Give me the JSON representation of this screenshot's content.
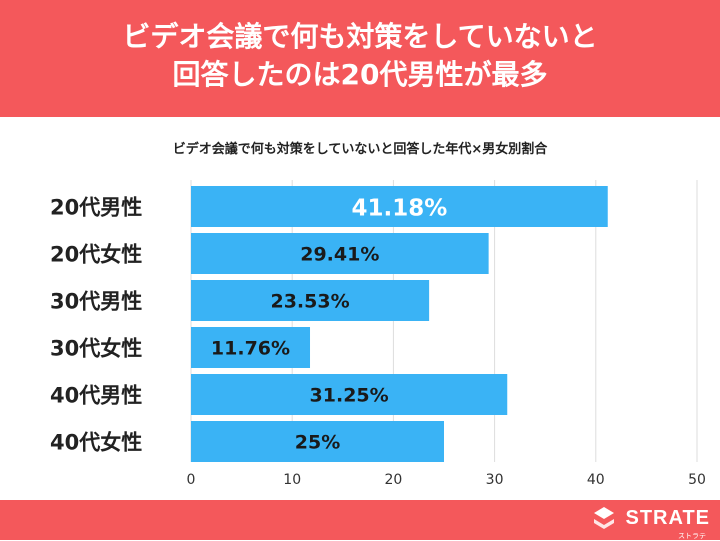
{
  "header": {
    "title_line1": "ビデオ会議で何も対策をしていないと",
    "title_line2": "回答したのは20代男性が最多"
  },
  "chart_data": {
    "type": "bar",
    "orientation": "horizontal",
    "title": "ビデオ会議で何も対策をしていないと回答した年代×男女別割合",
    "categories": [
      "20代男性",
      "20代女性",
      "30代男性",
      "30代女性",
      "40代男性",
      "40代女性"
    ],
    "values": [
      41.18,
      29.41,
      23.53,
      11.76,
      31.25,
      25
    ],
    "value_labels": [
      "41.18%",
      "29.41%",
      "23.53%",
      "11.76%",
      "31.25%",
      "25%"
    ],
    "xlim": [
      0,
      50
    ],
    "xticks": [
      "0",
      "10",
      "20",
      "30",
      "40",
      "50"
    ],
    "grid": true,
    "bar_color": "#3ab3f5"
  },
  "colors": {
    "accent": "#f4585b",
    "bar": "#3ab3f5"
  },
  "footer": {
    "logo_text": "STRATE",
    "logo_sub": "ストラテ",
    "logo_icon": "strate-logo-icon"
  }
}
